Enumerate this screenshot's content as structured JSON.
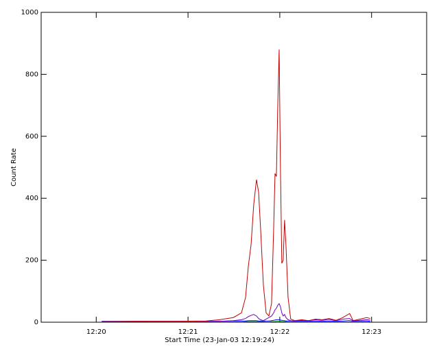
{
  "chart_data": {
    "type": "line",
    "xlabel": "Start Time (23-Jan-03 12:19:24)",
    "ylabel": "Count Rate",
    "xlim": [
      739.4,
      743.6
    ],
    "xticks": [
      {
        "value": 740,
        "label": "12:20"
      },
      {
        "value": 741,
        "label": "12:21"
      },
      {
        "value": 742,
        "label": "12:22"
      },
      {
        "value": 743,
        "label": "12:23"
      }
    ],
    "ylim": [
      0,
      1000
    ],
    "yticks": [
      0,
      200,
      400,
      600,
      800,
      1000
    ],
    "x": [
      740.06,
      740.448,
      740.896,
      741.194,
      741.343,
      741.493,
      741.582,
      741.627,
      741.657,
      741.687,
      741.716,
      741.746,
      741.769,
      741.791,
      741.821,
      741.851,
      741.881,
      741.91,
      741.933,
      741.948,
      741.963,
      741.978,
      741.993,
      742.007,
      742.022,
      742.037,
      742.052,
      742.067,
      742.09,
      742.119,
      742.164,
      742.239,
      742.313,
      742.388,
      742.463,
      742.537,
      742.612,
      742.687,
      742.761,
      742.799,
      742.873,
      742.948,
      742.985
    ],
    "series": [
      {
        "color": "#00a000",
        "values": [
          1,
          1,
          1,
          1,
          1,
          1,
          1,
          2,
          2,
          2,
          2,
          2,
          2,
          2,
          2,
          1,
          1,
          2,
          2,
          2,
          3,
          3,
          3,
          3,
          2,
          2,
          2,
          2,
          1,
          1,
          1,
          1,
          1,
          1,
          1,
          1,
          1,
          1,
          1,
          1,
          1,
          1,
          1
        ]
      },
      {
        "color": "#0000ff",
        "values": [
          3,
          3,
          3,
          3,
          3,
          4,
          4,
          4,
          5,
          5,
          5,
          5,
          4,
          4,
          4,
          4,
          4,
          5,
          6,
          7,
          8,
          8,
          8,
          7,
          6,
          5,
          5,
          4,
          4,
          4,
          3,
          4,
          3,
          4,
          3,
          4,
          3,
          4,
          5,
          3,
          4,
          4,
          3
        ]
      },
      {
        "color": "#7000c0",
        "values": [
          1,
          1,
          2,
          2,
          3,
          5,
          8,
          12,
          18,
          22,
          25,
          20,
          12,
          8,
          5,
          10,
          15,
          20,
          30,
          40,
          45,
          55,
          60,
          50,
          30,
          20,
          25,
          15,
          8,
          5,
          4,
          6,
          5,
          8,
          6,
          9,
          5,
          10,
          12,
          4,
          6,
          8,
          7
        ]
      },
      {
        "color": "#c00000",
        "values": [
          2,
          3,
          3,
          4,
          8,
          15,
          30,
          80,
          180,
          250,
          380,
          460,
          420,
          300,
          120,
          30,
          20,
          60,
          300,
          480,
          470,
          700,
          880,
          500,
          190,
          200,
          330,
          250,
          80,
          10,
          5,
          8,
          5,
          10,
          8,
          12,
          6,
          15,
          28,
          5,
          10,
          15,
          12
        ]
      }
    ]
  }
}
